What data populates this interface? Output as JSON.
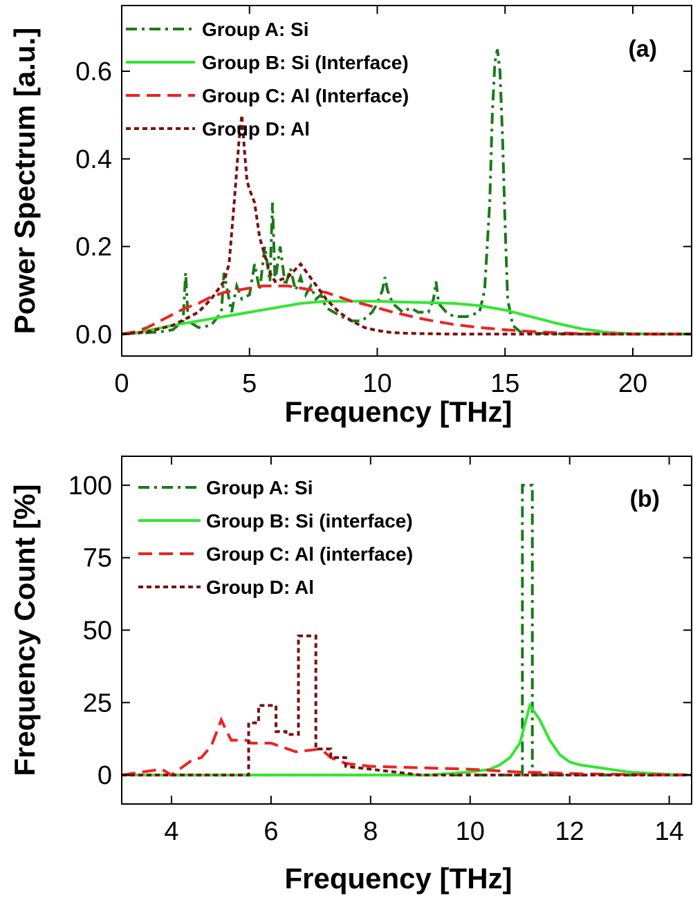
{
  "chart_data": [
    {
      "type": "line",
      "panel_label": "(a)",
      "xlabel": "Frequency [THz]",
      "ylabel": "Power Spectrum [a.u.]",
      "xlim": [
        0,
        22.3
      ],
      "ylim": [
        -0.05,
        0.75
      ],
      "xticks": [
        0,
        5,
        10,
        15,
        20
      ],
      "yticks": [
        0.0,
        0.2,
        0.4,
        0.6
      ],
      "ytick_labels": [
        "0.0",
        "0.2",
        "0.4",
        "0.6"
      ],
      "grid": false,
      "legend_position": "top-left",
      "series": [
        {
          "name": "Group A: Si",
          "color": "#1a7a1a",
          "dash": "dashdot",
          "x": [
            0,
            1.5,
            2.0,
            2.4,
            2.5,
            2.6,
            3.0,
            3.5,
            3.9,
            4.0,
            4.3,
            4.5,
            4.7,
            5.0,
            5.2,
            5.4,
            5.6,
            5.8,
            5.9,
            6.0,
            6.2,
            6.4,
            6.6,
            6.8,
            7.0,
            7.2,
            7.4,
            7.6,
            7.8,
            8.0,
            8.3,
            8.6,
            9.0,
            9.4,
            9.8,
            10.0,
            10.2,
            10.3,
            10.4,
            10.6,
            10.8,
            11.0,
            11.3,
            11.6,
            12.0,
            12.2,
            12.3,
            12.4,
            12.7,
            13.0,
            13.5,
            14.0,
            14.2,
            14.4,
            14.5,
            14.6,
            14.7,
            14.8,
            14.9,
            15.0,
            15.1,
            15.3,
            15.6,
            16.0,
            17.0,
            18.0,
            19.0,
            20.0,
            21.0,
            22.3
          ],
          "values": [
            0,
            0.005,
            0.01,
            0.03,
            0.14,
            0.03,
            0.015,
            0.02,
            0.05,
            0.14,
            0.05,
            0.11,
            0.08,
            0.09,
            0.16,
            0.1,
            0.2,
            0.12,
            0.3,
            0.12,
            0.2,
            0.11,
            0.15,
            0.1,
            0.13,
            0.09,
            0.11,
            0.08,
            0.09,
            0.06,
            0.05,
            0.04,
            0.03,
            0.03,
            0.05,
            0.07,
            0.1,
            0.13,
            0.1,
            0.07,
            0.06,
            0.05,
            0.06,
            0.05,
            0.05,
            0.08,
            0.12,
            0.07,
            0.05,
            0.04,
            0.04,
            0.05,
            0.1,
            0.3,
            0.5,
            0.62,
            0.65,
            0.6,
            0.45,
            0.25,
            0.08,
            0.02,
            0.005,
            0.002,
            0.001,
            0,
            0,
            0,
            0,
            0
          ]
        },
        {
          "name": "Group B: Si (Interface)",
          "color": "#33e633",
          "dash": "solid",
          "x": [
            0,
            0.5,
            1.0,
            2.0,
            3.0,
            4.0,
            5.0,
            6.0,
            7.0,
            8.0,
            9.0,
            10.0,
            11.0,
            12.0,
            13.0,
            14.0,
            15.0,
            16.0,
            17.0,
            18.0,
            19.0,
            20.0,
            21.0,
            22.3
          ],
          "values": [
            0,
            0.002,
            0.008,
            0.02,
            0.03,
            0.04,
            0.05,
            0.06,
            0.07,
            0.075,
            0.075,
            0.075,
            0.073,
            0.072,
            0.07,
            0.065,
            0.055,
            0.04,
            0.025,
            0.012,
            0.004,
            0.001,
            0,
            0
          ]
        },
        {
          "name": "Group C: Al (Interface)",
          "color": "#ee2222",
          "dash": "longdash",
          "x": [
            0,
            0.5,
            1.0,
            1.5,
            2.0,
            2.5,
            3.0,
            3.5,
            4.0,
            4.5,
            5.0,
            5.5,
            6.0,
            6.5,
            7.0,
            7.5,
            8.0,
            8.5,
            9.0,
            9.5,
            10.0,
            10.5,
            11.0,
            11.5,
            12.0,
            12.5,
            13.0,
            14.0,
            15.0,
            16.0,
            17.0,
            18.0,
            19.0,
            20.0,
            22.3
          ],
          "values": [
            0,
            0.005,
            0.015,
            0.03,
            0.045,
            0.06,
            0.07,
            0.085,
            0.095,
            0.1,
            0.105,
            0.11,
            0.11,
            0.11,
            0.105,
            0.1,
            0.095,
            0.085,
            0.075,
            0.068,
            0.06,
            0.052,
            0.045,
            0.038,
            0.032,
            0.027,
            0.022,
            0.015,
            0.01,
            0.006,
            0.003,
            0.001,
            0.0005,
            0,
            0
          ]
        },
        {
          "name": "Group D: Al",
          "color": "#7a1010",
          "dash": "shortdash",
          "x": [
            0,
            1.0,
            2.0,
            3.0,
            3.5,
            4.0,
            4.2,
            4.4,
            4.6,
            4.7,
            4.8,
            4.9,
            5.0,
            5.2,
            5.4,
            5.6,
            5.8,
            6.0,
            6.5,
            7.0,
            7.5,
            8.0,
            8.5,
            9.0,
            9.5,
            10.0,
            10.5,
            11.0,
            12.0,
            13.0,
            14.0,
            15.0,
            22.3
          ],
          "values": [
            0,
            0.005,
            0.02,
            0.05,
            0.08,
            0.12,
            0.16,
            0.3,
            0.45,
            0.5,
            0.42,
            0.35,
            0.33,
            0.3,
            0.22,
            0.18,
            0.14,
            0.12,
            0.13,
            0.16,
            0.12,
            0.08,
            0.05,
            0.03,
            0.015,
            0.008,
            0.004,
            0.002,
            0.001,
            0,
            0,
            0,
            0
          ]
        }
      ]
    },
    {
      "type": "line",
      "panel_label": "(b)",
      "xlabel": "Frequency [THz]",
      "ylabel": "Frequency Count [%]",
      "xlim": [
        3,
        14.45
      ],
      "ylim": [
        -10,
        110
      ],
      "xticks": [
        4,
        6,
        8,
        10,
        12,
        14
      ],
      "yticks": [
        0,
        25,
        50,
        75,
        100
      ],
      "grid": false,
      "legend_position": "top-left",
      "series": [
        {
          "name": "Group A: Si",
          "color": "#1a7a1a",
          "dash": "dashdot",
          "x": [
            3,
            11.0,
            11.05,
            11.05,
            11.25,
            11.25,
            11.3,
            14.45
          ],
          "values": [
            0,
            0,
            0,
            100,
            100,
            0,
            0,
            0
          ]
        },
        {
          "name": "Group B: Si (interface)",
          "color": "#33e633",
          "dash": "solid",
          "x": [
            3,
            9.2,
            9.4,
            9.6,
            9.8,
            10.0,
            10.2,
            10.4,
            10.6,
            10.8,
            11.0,
            11.2,
            11.4,
            11.6,
            11.8,
            12.0,
            12.2,
            12.4,
            12.6,
            12.8,
            13.0,
            13.2,
            13.4,
            13.6,
            13.8,
            14.0,
            14.45
          ],
          "values": [
            0,
            0,
            0.3,
            0.5,
            0.8,
            1.0,
            1.5,
            2,
            3.5,
            6,
            11,
            24,
            19,
            12,
            7,
            4.5,
            3.5,
            3,
            2.5,
            2,
            1.5,
            1,
            0.8,
            0.6,
            0.4,
            0.2,
            0
          ]
        },
        {
          "name": "Group C: Al (interface)",
          "color": "#ee2222",
          "dash": "longdash",
          "x": [
            3,
            3.8,
            4.0,
            4.4,
            4.6,
            4.8,
            5.0,
            5.2,
            5.5,
            5.6,
            5.8,
            6.0,
            6.5,
            7.0,
            7.2,
            7.5,
            8.0,
            9.0,
            10.0,
            10.5,
            11.0,
            11.5,
            12.0,
            13.0,
            14.45
          ],
          "values": [
            0,
            2,
            0,
            5,
            6,
            10,
            19,
            12,
            12,
            11,
            11,
            11,
            8,
            9,
            6,
            4,
            3,
            2.5,
            2,
            1.5,
            1,
            0.8,
            0.5,
            0.2,
            0
          ]
        },
        {
          "name": "Group D: Al",
          "color": "#7a1010",
          "dash": "shortdash",
          "x": [
            3,
            5.55,
            5.55,
            5.75,
            5.75,
            6.1,
            6.1,
            6.3,
            6.3,
            6.55,
            6.55,
            6.9,
            6.9,
            7.2,
            7.2,
            7.5,
            7.5,
            8.0,
            8.5,
            9.0,
            14.45
          ],
          "values": [
            0,
            0,
            18,
            18,
            24,
            24,
            15,
            15,
            14,
            14,
            48,
            48,
            9,
            9,
            6,
            6,
            3,
            2,
            1,
            0,
            0
          ]
        }
      ]
    }
  ]
}
